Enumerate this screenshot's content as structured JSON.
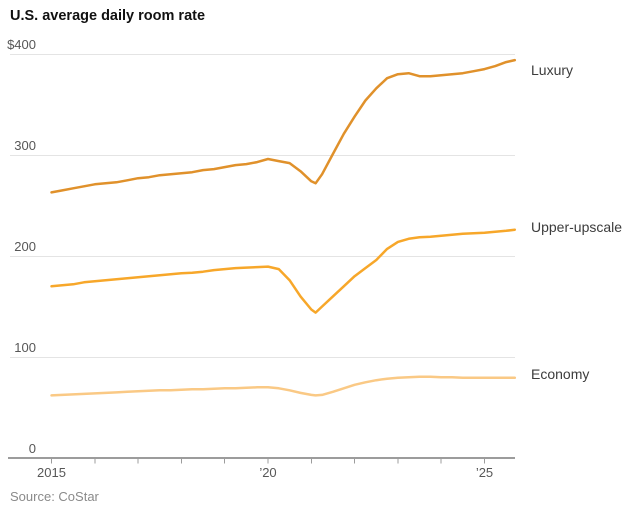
{
  "source": "Source: CoStar",
  "chart_data": {
    "type": "line",
    "title": "U.S. average daily room rate",
    "ylabel": "",
    "xlabel": "",
    "grid": "horizontal",
    "legend_position": "right-of-line-ends",
    "x": [
      2015,
      2015.25,
      2015.5,
      2015.75,
      2016,
      2016.25,
      2016.5,
      2016.75,
      2017,
      2017.25,
      2017.5,
      2017.75,
      2018,
      2018.25,
      2018.5,
      2018.75,
      2019,
      2019.25,
      2019.5,
      2019.75,
      2020,
      2020.25,
      2020.5,
      2020.75,
      2021,
      2021.1,
      2021.25,
      2021.5,
      2021.75,
      2022,
      2022.25,
      2022.5,
      2022.75,
      2023,
      2023.25,
      2023.5,
      2023.75,
      2024,
      2024.25,
      2024.5,
      2024.75,
      2025,
      2025.25,
      2025.5,
      2025.7
    ],
    "series": [
      {
        "name": "Luxury",
        "color": "#E0912B",
        "values": [
          263,
          265,
          267,
          269,
          271,
          272,
          273,
          275,
          277,
          278,
          280,
          281,
          282,
          283,
          285,
          286,
          288,
          290,
          291,
          293,
          296,
          294,
          292,
          284,
          274,
          272,
          281,
          301,
          321,
          338,
          354,
          366,
          376,
          380,
          381,
          378,
          378,
          379,
          380,
          381,
          383,
          385,
          388,
          392,
          394
        ]
      },
      {
        "name": "Upper-upscale",
        "color": "#F7A72A",
        "values": [
          170,
          171,
          172,
          174,
          175,
          176,
          177,
          178,
          179,
          180,
          181,
          182,
          183,
          183.5,
          184.5,
          186,
          187,
          188,
          188.5,
          189,
          189.5,
          187,
          176,
          160,
          147,
          144,
          150,
          160,
          170,
          180,
          188,
          196,
          207,
          214,
          217,
          218.5,
          219,
          220,
          221,
          222,
          222.5,
          223,
          224,
          225,
          226
        ]
      },
      {
        "name": "Economy",
        "color": "#FAC985",
        "values": [
          62,
          62.5,
          63,
          63.5,
          64,
          64.5,
          65,
          65.5,
          66,
          66.5,
          67,
          67,
          67.5,
          68,
          68,
          68.5,
          69,
          69,
          69.5,
          70,
          70,
          69,
          67,
          64.5,
          62.5,
          62,
          62.5,
          65.5,
          69,
          72.5,
          75,
          77,
          78.5,
          79.5,
          80,
          80.5,
          80.5,
          80,
          80,
          79.5,
          79.5,
          79.5,
          79.5,
          79.5,
          79.5
        ]
      }
    ],
    "y_axis": {
      "min": 0,
      "max": 400,
      "ticks": [
        {
          "value": 400,
          "label": "$400"
        },
        {
          "value": 300,
          "label": "300"
        },
        {
          "value": 200,
          "label": "200"
        },
        {
          "value": 100,
          "label": "100"
        },
        {
          "value": 0,
          "label": "0"
        }
      ]
    },
    "x_axis": {
      "tick_years": [
        2015,
        2016,
        2017,
        2018,
        2019,
        2020,
        2021,
        2022,
        2023,
        2024,
        2025
      ],
      "labeled": [
        {
          "year": 2015,
          "label": "2015"
        },
        {
          "year": 2020,
          "label": "’20"
        },
        {
          "year": 2025,
          "label": "’25"
        }
      ]
    },
    "colors": {
      "grid": "#E4E4E4",
      "axis": "#9C9C9C",
      "tick_text": "#575757"
    }
  }
}
